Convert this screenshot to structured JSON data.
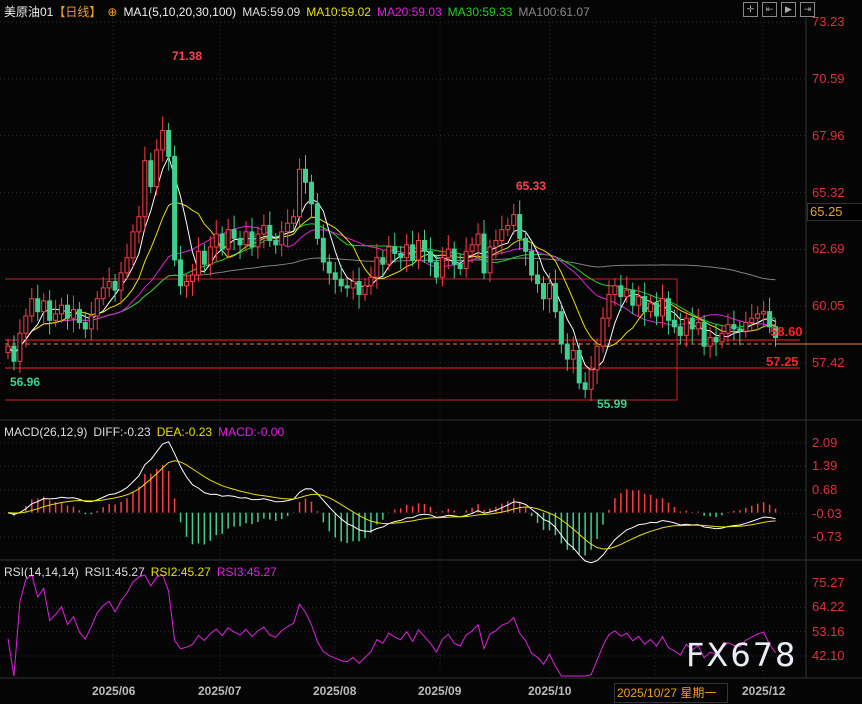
{
  "header": {
    "symbol": "美原油01",
    "period": "【日线】",
    "ma_label": "MA1(5,10,20,30,100)",
    "ma5": "MA5:59.09",
    "ma10": "MA10:59.02",
    "ma20": "MA20:59.03",
    "ma30": "MA30:59.33",
    "ma100": "MA100:61.07"
  },
  "macd_header": {
    "label": "MACD(26,12,9)",
    "diff": "DIFF:-0.23",
    "dea": "DEA:-0.23",
    "macd": "MACD:-0.00"
  },
  "rsi_header": {
    "label": "RSI(14,14,14)",
    "rsi1": "RSI1:45.27",
    "rsi2": "RSI2:45.27",
    "rsi3": "RSI3:45.27"
  },
  "colors": {
    "up": "#ff3b46",
    "down": "#3fd08f",
    "ma5": "#ffffff",
    "ma10": "#e8e000",
    "ma20": "#e020e0",
    "ma30": "#20d020",
    "ma100": "#808080",
    "axis": "#e0303a",
    "rsi": "#e020e0"
  },
  "toolbar_icons": [
    "crosshair-icon",
    "zoom-left-icon",
    "play-icon",
    "jump-end-icon"
  ],
  "watermark": "FX678",
  "chart_data": {
    "type": "candlestick",
    "price_ticks": [
      "73.23",
      "70.59",
      "67.96",
      "65.32",
      "62.69",
      "60.05",
      "57.42"
    ],
    "price_range": [
      57.42,
      73.23
    ],
    "current_price": "65.25",
    "annotations": {
      "high1": "71.38",
      "high2": "65.33",
      "low1": "56.96",
      "low2": "55.99",
      "level1": "58.60",
      "level2": "57.25"
    },
    "macd_ticks": [
      "2.09",
      "1.39",
      "0.68",
      "-0.03",
      "-0.73"
    ],
    "macd_range": [
      -0.73,
      2.09
    ],
    "rsi_ticks": [
      "75.27",
      "64.22",
      "53.16",
      "42.10"
    ],
    "rsi_range": [
      42.1,
      75.27
    ],
    "x_labels": [
      "2025/06",
      "2025/07",
      "2025/08",
      "2025/09",
      "2025/10",
      "2025/12"
    ],
    "cursor_date": "2025/10/27 星期一",
    "closes": [
      58.2,
      57.5,
      58.8,
      59.6,
      60.4,
      59.8,
      60.3,
      59.4,
      59.7,
      60.1,
      59.5,
      59.9,
      59.3,
      59.0,
      59.6,
      60.4,
      60.9,
      61.2,
      60.8,
      61.6,
      62.3,
      63.5,
      64.2,
      66.8,
      65.6,
      67.3,
      68.2,
      67.0,
      62.2,
      61.0,
      61.2,
      61.5,
      62.6,
      62.0,
      62.8,
      63.4,
      62.7,
      63.6,
      63.2,
      62.9,
      63.5,
      62.8,
      63.4,
      63.8,
      63.1,
      62.9,
      63.5,
      63.9,
      64.2,
      66.4,
      65.8,
      64.8,
      63.2,
      62.1,
      61.6,
      61.3,
      61.0,
      60.9,
      61.2,
      60.6,
      61.0,
      61.4,
      62.3,
      62.0,
      62.8,
      62.5,
      62.3,
      62.9,
      62.2,
      63.1,
      62.6,
      62.1,
      61.4,
      62.3,
      62.7,
      62.0,
      61.8,
      62.6,
      62.9,
      63.4,
      61.6,
      62.8,
      63.1,
      63.6,
      63.8,
      64.3,
      63.2,
      62.6,
      61.5,
      61.1,
      60.4,
      61.1,
      59.8,
      58.3,
      57.6,
      58.0,
      56.5,
      56.2,
      57.1,
      58.2,
      59.5,
      60.6,
      61.0,
      60.5,
      60.8,
      60.1,
      60.5,
      59.8,
      60.2,
      59.6,
      60.4,
      59.4,
      59.1,
      58.7,
      59.5,
      59.0,
      59.3,
      58.2,
      58.6,
      58.4,
      58.8,
      59.2,
      59.0,
      58.9,
      59.3,
      59.5,
      59.7,
      59.8,
      59.1,
      58.6
    ]
  }
}
